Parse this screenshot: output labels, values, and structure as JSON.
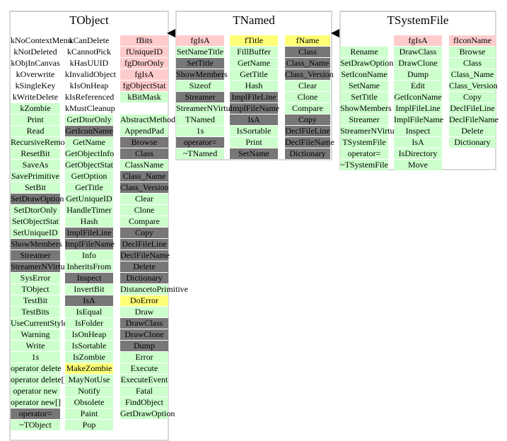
{
  "classes": [
    {
      "name": "TObject",
      "columns": [
        [
          [
            "kNoContextMenu",
            "w"
          ],
          [
            "kNotDeleted",
            "w"
          ],
          [
            "kObjInCanvas",
            "w"
          ],
          [
            "kOverwrite",
            "w"
          ],
          [
            "kSingleKey",
            "w"
          ],
          [
            "kWriteDelete",
            "w"
          ],
          [
            "kZombie",
            "g"
          ],
          [
            "Print",
            "g"
          ],
          [
            "Read",
            "g"
          ],
          [
            "RecursiveRemove",
            "g"
          ],
          [
            "ResetBit",
            "g"
          ],
          [
            "SaveAs",
            "g"
          ],
          [
            "SavePrimitive",
            "g"
          ],
          [
            "SetBit",
            "g"
          ],
          [
            "SetDrawOption",
            "d"
          ],
          [
            "SetDtorOnly",
            "g"
          ],
          [
            "SetObjectStat",
            "g"
          ],
          [
            "SetUniqueID",
            "g"
          ],
          [
            "ShowMembers",
            "d"
          ],
          [
            "Streamer",
            "d"
          ],
          [
            "StreamerNVirtual",
            "d"
          ],
          [
            "SysError",
            "g"
          ],
          [
            "TObject",
            "g"
          ],
          [
            "TestBit",
            "g"
          ],
          [
            "TestBits",
            "g"
          ],
          [
            "UseCurrentStyle",
            "g"
          ],
          [
            "Warning",
            "g"
          ],
          [
            "Write",
            "g"
          ],
          [
            "1s",
            "g"
          ],
          [
            "operator delete",
            "g"
          ],
          [
            "operator delete[]",
            "g"
          ],
          [
            "operator new",
            "g"
          ],
          [
            "operator new[]",
            "g"
          ],
          [
            "operator=",
            "d"
          ],
          [
            "~TObject",
            "g"
          ]
        ],
        [
          [
            "kCanDelete",
            "w"
          ],
          [
            "kCannotPick",
            "w"
          ],
          [
            "kHasUUID",
            "w"
          ],
          [
            "kInvalidObject",
            "w"
          ],
          [
            "kIsOnHeap",
            "w"
          ],
          [
            "kIsReferenced",
            "w"
          ],
          [
            "kMustCleanup",
            "w"
          ],
          [
            "GetDtorOnly",
            "g"
          ],
          [
            "GetIconName",
            "d"
          ],
          [
            "GetName",
            "g"
          ],
          [
            "GetObjectInfo",
            "g"
          ],
          [
            "GetObjectStat",
            "g"
          ],
          [
            "GetOption",
            "g"
          ],
          [
            "GetTitle",
            "g"
          ],
          [
            "GetUniqueID",
            "g"
          ],
          [
            "HandleTimer",
            "g"
          ],
          [
            "Hash",
            "g"
          ],
          [
            "ImplFileLine",
            "d"
          ],
          [
            "ImplFileName",
            "d"
          ],
          [
            "Info",
            "g"
          ],
          [
            "InheritsFrom",
            "g"
          ],
          [
            "Inspect",
            "d"
          ],
          [
            "InvertBit",
            "g"
          ],
          [
            "IsA",
            "d"
          ],
          [
            "IsEqual",
            "g"
          ],
          [
            "IsFolder",
            "g"
          ],
          [
            "IsOnHeap",
            "g"
          ],
          [
            "IsSortable",
            "g"
          ],
          [
            "IsZombie",
            "g"
          ],
          [
            "MakeZombie",
            "y"
          ],
          [
            "MayNotUse",
            "g"
          ],
          [
            "Notify",
            "g"
          ],
          [
            "Obsolete",
            "g"
          ],
          [
            "Paint",
            "g"
          ],
          [
            "Pop",
            "g"
          ]
        ],
        [
          [
            "fBits",
            "r"
          ],
          [
            "fUniqueID",
            "r"
          ],
          [
            "fgDtorOnly",
            "r"
          ],
          [
            "fgIsA",
            "r"
          ],
          [
            "fgObjectStat",
            "r"
          ],
          [
            "kBitMask",
            "g"
          ],
          [
            "",
            ""
          ],
          [
            "AbstractMethod",
            "g"
          ],
          [
            "AppendPad",
            "g"
          ],
          [
            "Browse",
            "d"
          ],
          [
            "Class",
            "d"
          ],
          [
            "ClassName",
            "g"
          ],
          [
            "Class_Name",
            "d"
          ],
          [
            "Class_Version",
            "d"
          ],
          [
            "Clear",
            "g"
          ],
          [
            "Clone",
            "g"
          ],
          [
            "Compare",
            "g"
          ],
          [
            "Copy",
            "d"
          ],
          [
            "DeclFileLine",
            "d"
          ],
          [
            "DeclFileName",
            "d"
          ],
          [
            "Delete",
            "d"
          ],
          [
            "Dictionary",
            "d"
          ],
          [
            "DistancetoPrimitive",
            "g"
          ],
          [
            "DoError",
            "y"
          ],
          [
            "Draw",
            "g"
          ],
          [
            "DrawClass",
            "d"
          ],
          [
            "DrawClone",
            "d"
          ],
          [
            "Dump",
            "d"
          ],
          [
            "Error",
            "g"
          ],
          [
            "Execute",
            "g"
          ],
          [
            "ExecuteEvent",
            "g"
          ],
          [
            "Fatal",
            "g"
          ],
          [
            "FindObject",
            "g"
          ],
          [
            "GetDrawOption",
            "g"
          ]
        ]
      ]
    },
    {
      "name": "TNamed",
      "columns": [
        [
          [
            "fgIsA",
            "r"
          ],
          [
            "SetNameTitle",
            "g"
          ],
          [
            "SetTitle",
            "d"
          ],
          [
            "ShowMembers",
            "d"
          ],
          [
            "Sizeof",
            "g"
          ],
          [
            "Streamer",
            "d"
          ],
          [
            "StreamerNVirtual",
            "g"
          ],
          [
            "TNamed",
            "g"
          ],
          [
            "1s",
            "g"
          ],
          [
            "operator=",
            "d"
          ],
          [
            "~TNamed",
            "g"
          ]
        ],
        [
          [
            "fTitle",
            "y"
          ],
          [
            "FillBuffer",
            "g"
          ],
          [
            "GetName",
            "g"
          ],
          [
            "GetTitle",
            "g"
          ],
          [
            "Hash",
            "g"
          ],
          [
            "ImplFileLine",
            "d"
          ],
          [
            "ImplFileName",
            "d"
          ],
          [
            "IsA",
            "d"
          ],
          [
            "IsSortable",
            "g"
          ],
          [
            "Print",
            "g"
          ],
          [
            "SetName",
            "d"
          ]
        ],
        [
          [
            "fName",
            "y"
          ],
          [
            "Class",
            "d"
          ],
          [
            "Class_Name",
            "d"
          ],
          [
            "Class_Version",
            "d"
          ],
          [
            "Clear",
            "g"
          ],
          [
            "Clone",
            "g"
          ],
          [
            "Compare",
            "g"
          ],
          [
            "Copy",
            "d"
          ],
          [
            "DeclFileLine",
            "d"
          ],
          [
            "DeclFileName",
            "d"
          ],
          [
            "Dictionary",
            "d"
          ]
        ]
      ]
    },
    {
      "name": "TSystemFile",
      "columns": [
        [
          [
            "",
            ""
          ],
          [
            "Rename",
            "g"
          ],
          [
            "SetDrawOption",
            "g"
          ],
          [
            "SetIconName",
            "g"
          ],
          [
            "SetName",
            "g"
          ],
          [
            "SetTitle",
            "g"
          ],
          [
            "ShowMembers",
            "g"
          ],
          [
            "Streamer",
            "g"
          ],
          [
            "StreamerNVirtual",
            "g"
          ],
          [
            "TSystemFile",
            "g"
          ],
          [
            "operator=",
            "g"
          ],
          [
            "~TSystemFile",
            "g"
          ]
        ],
        [
          [
            "fgIsA",
            "r"
          ],
          [
            "DrawClass",
            "g"
          ],
          [
            "DrawClone",
            "g"
          ],
          [
            "Dump",
            "g"
          ],
          [
            "Edit",
            "g"
          ],
          [
            "GetIconName",
            "g"
          ],
          [
            "ImplFileLine",
            "g"
          ],
          [
            "ImplFileName",
            "g"
          ],
          [
            "Inspect",
            "g"
          ],
          [
            "IsA",
            "g"
          ],
          [
            "IsDirectory",
            "g"
          ],
          [
            "Move",
            "g"
          ]
        ],
        [
          [
            "fIconName",
            "r"
          ],
          [
            "Browse",
            "g"
          ],
          [
            "Class",
            "g"
          ],
          [
            "Class_Name",
            "g"
          ],
          [
            "Class_Version",
            "g"
          ],
          [
            "Copy",
            "g"
          ],
          [
            "DeclFileLine",
            "g"
          ],
          [
            "DeclFileName",
            "g"
          ],
          [
            "Delete",
            "g"
          ],
          [
            "Dictionary",
            "g"
          ]
        ]
      ]
    }
  ]
}
